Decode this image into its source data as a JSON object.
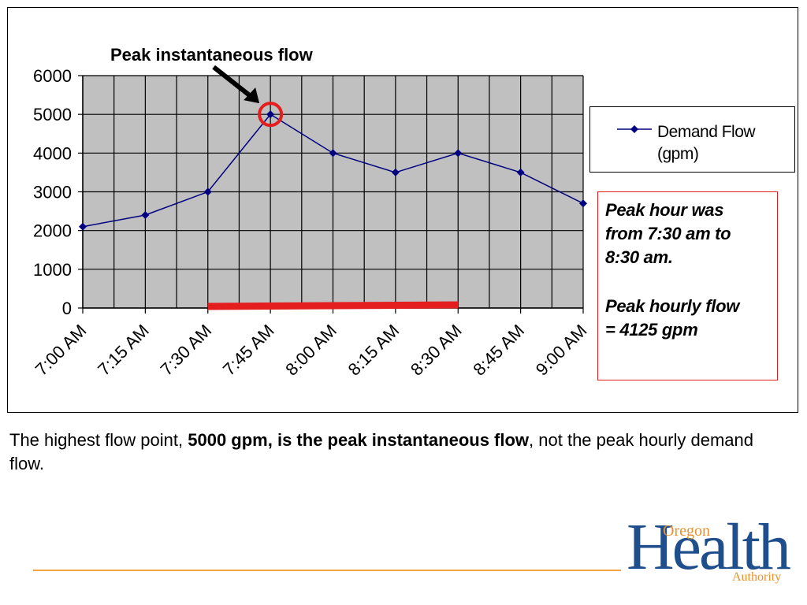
{
  "chart_data": {
    "type": "line",
    "categories": [
      "7:00 AM",
      "7:15 AM",
      "7:30 AM",
      "7:45 AM",
      "8:00 AM",
      "8:15 AM",
      "8:30 AM",
      "8:45 AM",
      "9:00 AM"
    ],
    "series": [
      {
        "name": "Demand Flow (gpm)",
        "values": [
          2100,
          2400,
          3000,
          5000,
          4000,
          3500,
          4000,
          3500,
          2700
        ]
      }
    ],
    "yticks": [
      "0",
      "1000",
      "2000",
      "3000",
      "4000",
      "5000",
      "6000"
    ],
    "ylim": [
      0,
      6000
    ],
    "grid": true,
    "legend_position": "right",
    "annotation": "Peak instantaneous flow",
    "peak_category": "7:45 AM",
    "peak_value": 5000,
    "peak_hour_range": [
      "7:30 AM",
      "8:30 AM"
    ],
    "colors": {
      "plot_bg": "#c0c0c0",
      "series": "#000080",
      "highlight": "#e41e1e"
    }
  },
  "legend": {
    "label": "Demand Flow (gpm)"
  },
  "note": {
    "line1": "Peak hour was",
    "line2": "from 7:30 am to",
    "line3": "8:30 am.",
    "line4": "Peak hourly flow",
    "line5": "= 4125 gpm"
  },
  "caption": {
    "part1": "The highest flow point, ",
    "bold": "5000 gpm, is the peak instantaneous flow",
    "part2": ", not the peak hourly demand flow."
  },
  "logo": {
    "oregon": "Oregon",
    "health": "Health",
    "authority": "Authority"
  },
  "colors": {
    "logo_blue": "#1f4e8c",
    "logo_orange": "#e8912d",
    "footer_line": "#f4a341"
  }
}
